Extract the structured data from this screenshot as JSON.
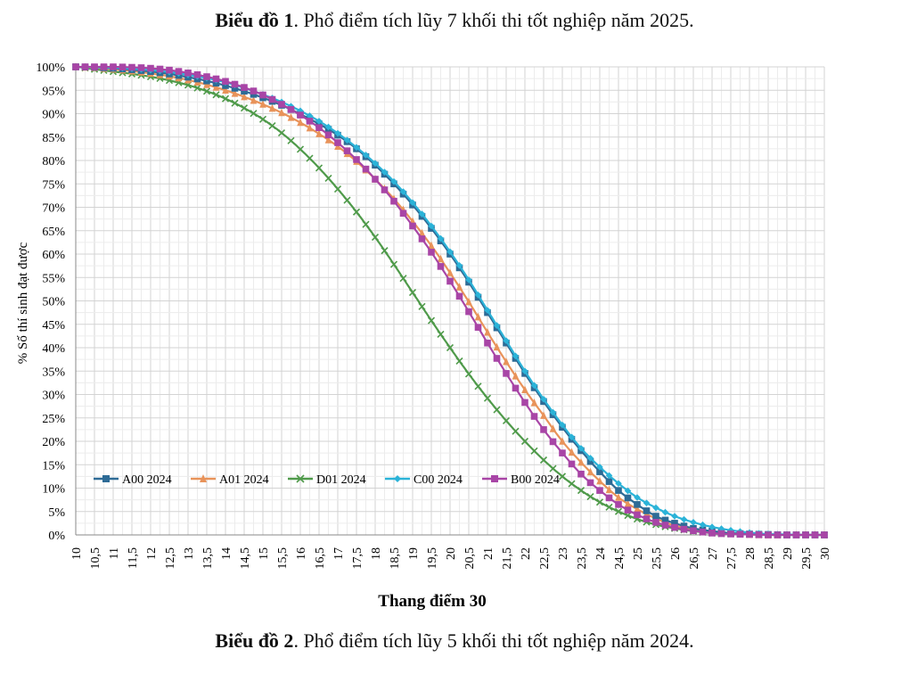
{
  "captions": {
    "top_bold": "Biểu đồ 1",
    "top_rest": ". Phổ điểm tích lũy 7 khối thi tốt nghiệp năm 2025.",
    "bottom_bold": "Biểu đồ 2",
    "bottom_rest": ". Phổ điểm tích lũy 5 khối thi tốt nghiệp năm 2024."
  },
  "chart_data": {
    "type": "line",
    "title": "",
    "xlabel": "Thang điểm 30",
    "ylabel": "% Số thí sinh đạt được",
    "xlim": [
      10,
      30
    ],
    "ylim": [
      0,
      100
    ],
    "grid": true,
    "legend_position": "bottom-left",
    "x_ticks": [
      "10",
      "10,5",
      "11",
      "11,5",
      "12",
      "12,5",
      "13",
      "13,5",
      "14",
      "14,5",
      "15",
      "15,5",
      "16",
      "16,5",
      "17",
      "17,5",
      "18",
      "18,5",
      "19",
      "19,5",
      "20",
      "20,5",
      "21",
      "21,5",
      "22",
      "22,5",
      "23",
      "23,5",
      "24",
      "24,5",
      "25",
      "25,5",
      "26",
      "26,5",
      "27",
      "27,5",
      "28",
      "28,5",
      "29",
      "29,5",
      "30"
    ],
    "y_ticks": [
      "0%",
      "5%",
      "10%",
      "15%",
      "20%",
      "25%",
      "30%",
      "35%",
      "40%",
      "45%",
      "50%",
      "55%",
      "60%",
      "65%",
      "70%",
      "75%",
      "80%",
      "85%",
      "90%",
      "95%",
      "100%"
    ],
    "x": [
      10,
      10.5,
      11,
      11.5,
      12,
      12.5,
      13,
      13.5,
      14,
      14.5,
      15,
      15.5,
      16,
      16.5,
      17,
      17.5,
      18,
      18.5,
      19,
      19.5,
      20,
      20.5,
      21,
      21.5,
      22,
      22.5,
      23,
      23.5,
      24,
      24.5,
      25,
      25.5,
      26,
      26.5,
      27,
      27.5,
      28,
      28.5,
      29,
      29.5,
      30
    ],
    "series": [
      {
        "name": "A00 2024",
        "color": "#2e6b96",
        "marker": "square",
        "values": [
          100,
          99.9,
          99.7,
          99.4,
          99,
          98.5,
          97.8,
          97,
          96,
          94.8,
          93.4,
          91.8,
          89.9,
          87.8,
          85.4,
          82.5,
          79,
          75,
          70.5,
          65.5,
          60,
          54,
          47.5,
          41,
          34.5,
          28.5,
          23,
          18,
          13.5,
          9.5,
          6.5,
          4,
          2.5,
          1.4,
          0.8,
          0.4,
          0.2,
          0.1,
          0,
          0,
          0
        ]
      },
      {
        "name": "A01 2024",
        "color": "#e8935a",
        "marker": "triangle",
        "values": [
          100,
          99.8,
          99.5,
          99.1,
          98.6,
          98,
          97.2,
          96.2,
          95,
          93.6,
          92,
          90.2,
          88.1,
          85.7,
          83,
          79.8,
          76,
          71.8,
          67,
          61.8,
          56,
          49.8,
          43.3,
          37,
          31,
          25.5,
          20,
          15.5,
          11.5,
          8,
          5.5,
          3.5,
          2,
          1.2,
          0.6,
          0.3,
          0.1,
          0,
          0,
          0,
          0
        ]
      },
      {
        "name": "D01 2024",
        "color": "#4f9a4a",
        "marker": "x",
        "values": [
          100,
          99.5,
          99,
          98.5,
          97.9,
          97.1,
          96.1,
          94.8,
          93.2,
          91.2,
          88.8,
          85.9,
          82.4,
          78.4,
          73.9,
          69,
          63.6,
          57.8,
          51.8,
          45.8,
          40,
          34.4,
          29.2,
          24.4,
          20,
          16,
          12.5,
          9.5,
          7,
          5,
          3.4,
          2.2,
          1.4,
          0.8,
          0.4,
          0.2,
          0.1,
          0,
          0,
          0,
          0
        ]
      },
      {
        "name": "C00 2024",
        "color": "#2bb3d8",
        "marker": "diamond",
        "values": [
          100,
          99.9,
          99.8,
          99.6,
          99.3,
          98.9,
          98.3,
          97.6,
          96.7,
          95.5,
          94.1,
          92.5,
          90.6,
          88.4,
          85.8,
          82.8,
          79.4,
          75.5,
          71,
          66,
          60.5,
          54.5,
          48,
          41.5,
          35,
          29,
          23.5,
          18.5,
          14.5,
          11,
          8,
          5.8,
          4,
          2.7,
          1.7,
          1,
          0.5,
          0.2,
          0.1,
          0,
          0
        ]
      },
      {
        "name": "B00 2024",
        "color": "#a845a6",
        "marker": "square",
        "values": [
          100,
          100,
          100,
          99.9,
          99.7,
          99.3,
          98.7,
          97.9,
          96.9,
          95.6,
          94,
          92,
          89.7,
          87,
          83.8,
          80.2,
          76,
          71.3,
          66,
          60.4,
          54.2,
          47.7,
          41,
          34.5,
          28.3,
          22.5,
          17.5,
          13,
          9.5,
          6.5,
          4.3,
          2.7,
          1.6,
          0.9,
          0.4,
          0.2,
          0.1,
          0,
          0,
          0,
          0
        ]
      }
    ]
  }
}
